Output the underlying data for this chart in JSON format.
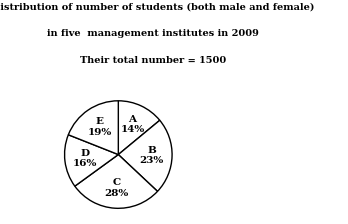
{
  "title_line1": "Distribution of number of students (both male and female)",
  "title_line2": "in five  management institutes in 2009",
  "title_line3": "Their total number = 1500",
  "labels": [
    "A",
    "B",
    "C",
    "D",
    "E"
  ],
  "percentages": [
    14,
    23,
    28,
    16,
    19
  ],
  "label_texts": [
    "A\n14%",
    "B\n23%",
    "C\n28%",
    "D\n16%",
    "E\n19%"
  ],
  "pie_colors": [
    "white",
    "white",
    "white",
    "white",
    "white"
  ],
  "edge_color": "black",
  "text_color": "black",
  "startangle": 90,
  "background_color": "white",
  "title1_fontsize": 7.0,
  "title2_fontsize": 7.0,
  "title3_fontsize": 7.0,
  "label_fontsize": 7.5
}
